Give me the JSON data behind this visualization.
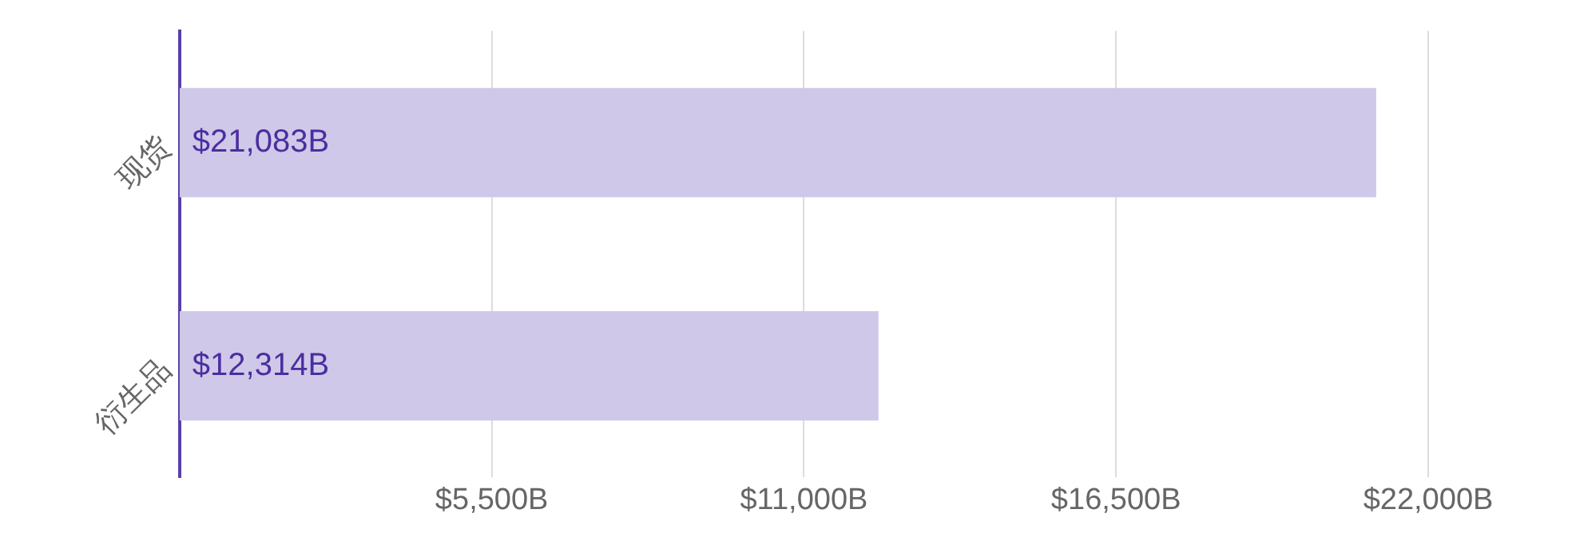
{
  "chart_data": {
    "type": "bar",
    "orientation": "horizontal",
    "categories": [
      "现货",
      "衍生品"
    ],
    "values": [
      21083,
      12314
    ],
    "color": "#cfc8e8",
    "value_labels": [
      "$21,083B",
      "$12,314B"
    ],
    "xlim": [
      0,
      22000
    ],
    "xticks": [
      {
        "value": 5500,
        "label": "$5,500B"
      },
      {
        "value": 11000,
        "label": "$11,000B"
      },
      {
        "value": 16500,
        "label": "$16,500B"
      },
      {
        "value": 22000,
        "label": "$22,000B"
      }
    ],
    "grid": "x"
  }
}
